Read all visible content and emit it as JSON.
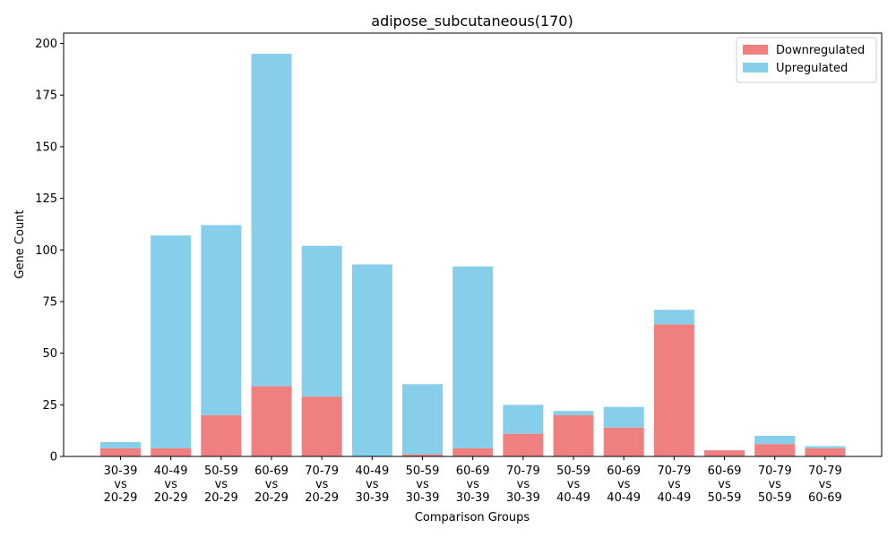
{
  "chart_data": {
    "type": "bar",
    "stacked": true,
    "title": "adipose_subcutaneous(170)",
    "xlabel": "Comparison Groups",
    "ylabel": "Gene Count",
    "ylim": [
      0,
      205
    ],
    "yticks": [
      0,
      25,
      50,
      75,
      100,
      125,
      150,
      175,
      200
    ],
    "grid": false,
    "legend_position": "top-right",
    "categories": [
      [
        "30-39",
        "vs",
        "20-29"
      ],
      [
        "40-49",
        "vs",
        "20-29"
      ],
      [
        "50-59",
        "vs",
        "20-29"
      ],
      [
        "60-69",
        "vs",
        "20-29"
      ],
      [
        "70-79",
        "vs",
        "20-29"
      ],
      [
        "40-49",
        "vs",
        "30-39"
      ],
      [
        "50-59",
        "vs",
        "30-39"
      ],
      [
        "60-69",
        "vs",
        "30-39"
      ],
      [
        "70-79",
        "vs",
        "30-39"
      ],
      [
        "50-59",
        "vs",
        "40-49"
      ],
      [
        "60-69",
        "vs",
        "40-49"
      ],
      [
        "70-79",
        "vs",
        "40-49"
      ],
      [
        "60-69",
        "vs",
        "50-59"
      ],
      [
        "70-79",
        "vs",
        "50-59"
      ],
      [
        "70-79",
        "vs",
        "60-69"
      ]
    ],
    "series": [
      {
        "name": "Downregulated",
        "color": "#f08080",
        "values": [
          4,
          4,
          20,
          34,
          29,
          0,
          1,
          4,
          11,
          20,
          14,
          64,
          3,
          6,
          4
        ]
      },
      {
        "name": "Upregulated",
        "color": "#87ceeb",
        "values": [
          3,
          103,
          92,
          161,
          73,
          93,
          34,
          88,
          14,
          2,
          10,
          7,
          0,
          4,
          1
        ]
      }
    ]
  }
}
